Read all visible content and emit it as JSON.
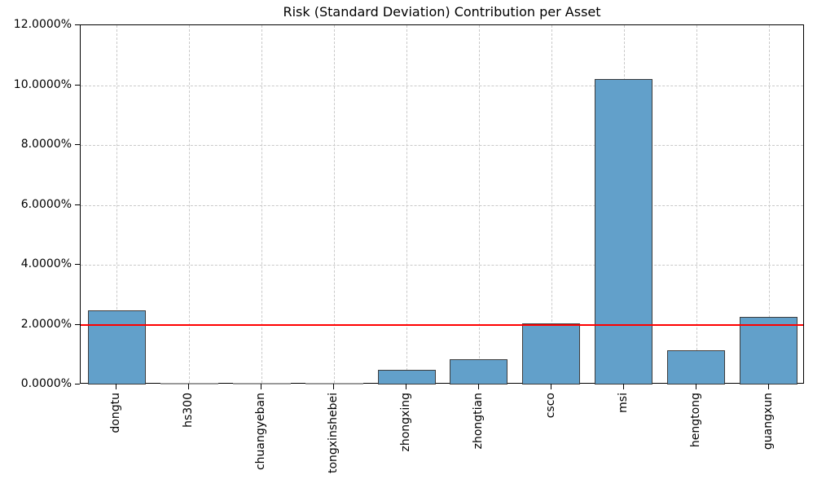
{
  "chart_data": {
    "type": "bar",
    "title": "Risk (Standard Deviation) Contribution per Asset",
    "categories": [
      "dongtu",
      "hs300",
      "chuangyeban",
      "tongxinshebei",
      "zhongxing",
      "zhongtian",
      "csco",
      "msi",
      "hengtong",
      "guangxun"
    ],
    "values": [
      2.48,
      0.01,
      0.01,
      0.01,
      0.49,
      0.84,
      2.05,
      10.2,
      1.14,
      2.26
    ],
    "value_unit": "%",
    "xlabel": "",
    "ylabel": "",
    "ylim": [
      0,
      12
    ],
    "ytick_values": [
      0,
      2,
      4,
      6,
      8,
      10,
      12
    ],
    "ytick_labels": [
      "0.0000%",
      "2.0000%",
      "4.0000%",
      "6.0000%",
      "8.0000%",
      "10.0000%",
      "12.0000%"
    ],
    "grid": true,
    "legend": null,
    "reference_line": {
      "value": 2.0,
      "color": "#ff0000"
    },
    "bar_color": "#62a0ca",
    "bar_edge_color": "#3d3d3d"
  }
}
